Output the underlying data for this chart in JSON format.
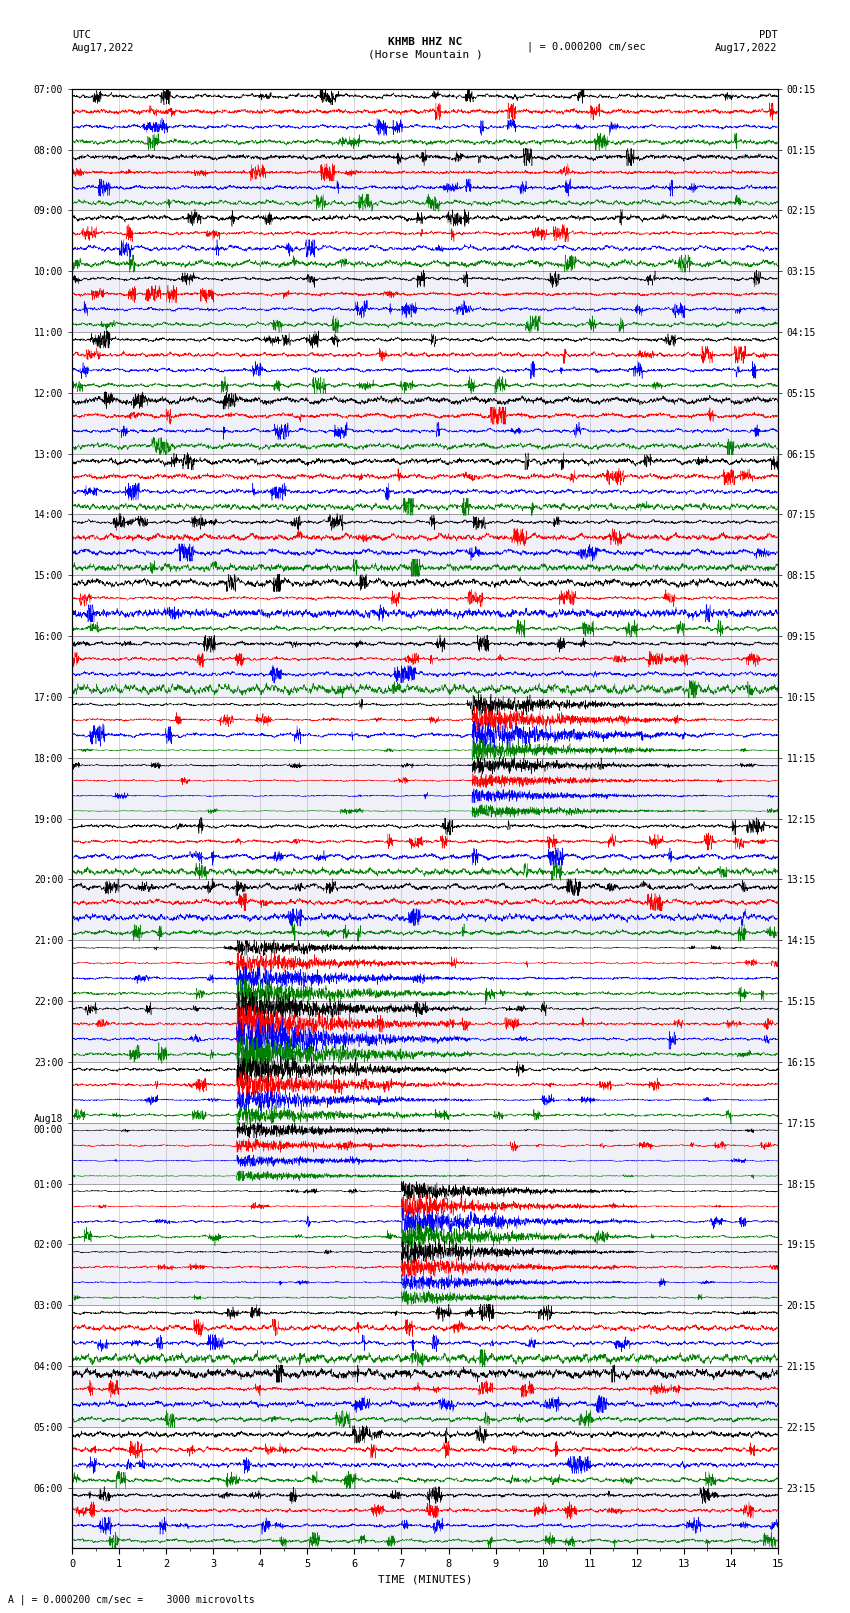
{
  "title_line1": "KHMB HHZ NC",
  "title_line2": "(Horse Mountain )",
  "scale_text": "| = 0.000200 cm/sec",
  "left_label_top": "UTC",
  "left_label_date": "Aug17,2022",
  "right_label_top": "PDT",
  "right_label_date": "Aug17,2022",
  "bottom_xlabel": "TIME (MINUTES)",
  "bottom_note": "A | = 0.000200 cm/sec =    3000 microvolts",
  "utc_times": [
    "07:00",
    "08:00",
    "09:00",
    "10:00",
    "11:00",
    "12:00",
    "13:00",
    "14:00",
    "15:00",
    "16:00",
    "17:00",
    "18:00",
    "19:00",
    "20:00",
    "21:00",
    "22:00",
    "23:00",
    "Aug18\n00:00",
    "01:00",
    "02:00",
    "03:00",
    "04:00",
    "05:00",
    "06:00"
  ],
  "pdt_times": [
    "00:15",
    "01:15",
    "02:15",
    "03:15",
    "04:15",
    "05:15",
    "06:15",
    "07:15",
    "08:15",
    "09:15",
    "10:15",
    "11:15",
    "12:15",
    "13:15",
    "14:15",
    "15:15",
    "16:15",
    "17:15",
    "18:15",
    "19:15",
    "20:15",
    "21:15",
    "22:15",
    "23:15"
  ],
  "colors": [
    "black",
    "red",
    "blue",
    "green"
  ],
  "n_hours": 24,
  "traces_per_hour": 4,
  "n_cols": 3600,
  "x_min": 0,
  "x_max": 15,
  "amplitude_scale": 0.38,
  "seed": 42,
  "bg_stripe_color": "#d0d0e8",
  "bg_white": "#ffffff",
  "earthquake_rows": [
    40,
    41,
    42,
    43,
    44,
    45,
    46,
    47,
    56,
    57,
    58,
    59,
    60,
    61,
    62,
    63,
    64,
    65,
    66,
    67,
    68,
    69,
    70,
    71,
    72,
    73,
    74,
    75,
    76,
    77,
    78,
    79,
    80,
    81,
    82,
    83,
    84,
    85,
    86,
    87,
    88,
    89,
    90,
    91
  ],
  "eq_amplitudes": [
    0.38,
    0.38,
    0.38,
    0.38,
    0.38,
    0.38,
    0.38,
    0.38,
    0.45,
    0.45,
    0.45,
    0.45,
    0.45,
    0.45,
    0.45,
    0.45,
    0.42,
    0.42,
    0.42,
    0.42,
    0.42,
    0.42,
    0.42,
    0.42,
    0.42,
    0.42,
    0.42,
    0.42,
    0.42,
    0.42,
    0.42,
    0.42,
    0.38,
    0.38,
    0.38,
    0.38,
    0.38,
    0.38,
    0.38,
    0.38,
    0.38,
    0.38,
    0.38,
    0.38
  ]
}
